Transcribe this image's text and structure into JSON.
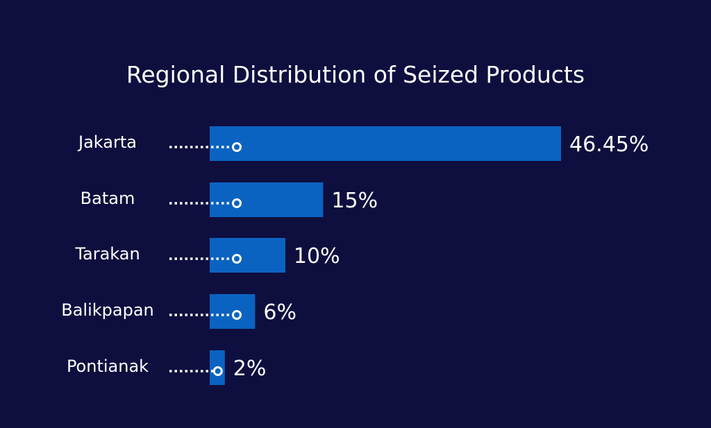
{
  "chart_data": {
    "type": "bar",
    "orientation": "horizontal",
    "title": "Regional Distribution of Seized Products",
    "categories": [
      "Jakarta",
      "Batam",
      "Tarakan",
      "Balikpapan",
      "Pontianak"
    ],
    "values": [
      46.45,
      15,
      10,
      6,
      2
    ],
    "value_labels": [
      "46.45%",
      "15%",
      "10%",
      "6%",
      "2%"
    ],
    "unit": "%",
    "xlim": [
      0,
      46.45
    ],
    "grid": false,
    "legend": "none"
  },
  "colors": {
    "background": "#0f0f3f",
    "bar": "#0b63c1",
    "text": "#ffffff"
  }
}
